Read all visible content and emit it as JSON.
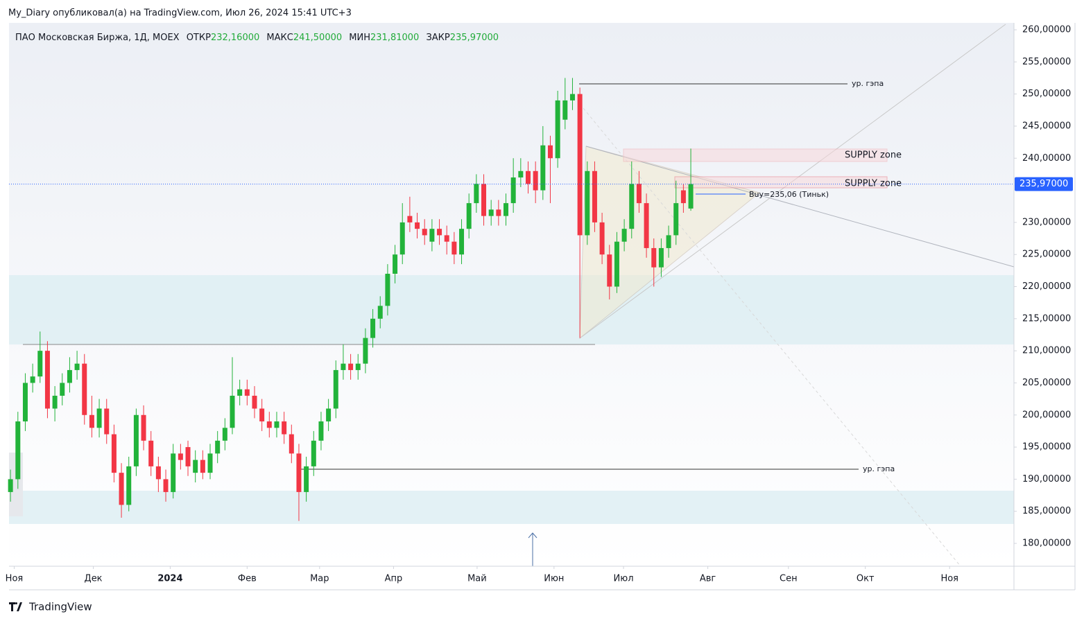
{
  "header": {
    "text": "My_Diary опубликовал(а) на TradingView.com, Июл 26, 2024 15:41 UTC+3"
  },
  "footer": {
    "brand": "TradingView"
  },
  "chart_data": {
    "type": "candlestick",
    "title": "ПАО Московская Биржа, 1Д, MOEX",
    "ohlc_legend": [
      {
        "name": "ОТКР",
        "label": "232,16000"
      },
      {
        "name": "МАКС",
        "label": "241,50000"
      },
      {
        "name": "МИН",
        "label": "231,81000"
      },
      {
        "name": "ЗАКР",
        "label": "235,97000"
      }
    ],
    "up_color": "#22b33a",
    "down_color": "#f23645",
    "open": [
      188,
      190,
      199,
      205,
      206,
      210,
      201,
      203,
      205,
      207,
      208,
      200,
      198,
      201,
      197,
      191,
      186,
      192,
      200,
      196,
      192,
      190,
      188,
      194,
      195,
      191,
      193,
      191,
      194,
      196,
      198,
      203,
      204,
      203,
      201,
      199,
      198,
      199,
      197,
      194,
      188,
      192,
      196,
      199,
      201,
      207,
      208,
      207,
      208,
      212,
      215,
      217,
      222,
      225,
      231,
      230,
      229,
      227,
      229,
      228,
      227,
      225,
      229,
      233,
      236,
      231,
      232,
      231,
      233,
      237,
      238,
      238,
      235,
      242,
      240,
      246,
      249,
      250,
      228,
      238,
      230,
      225,
      220,
      227,
      229,
      236,
      233,
      226,
      223,
      226,
      228,
      235,
      232.16
    ],
    "high": [
      191.5,
      200.5,
      206.5,
      208,
      213,
      211.5,
      204.5,
      206.5,
      209,
      210,
      209.5,
      203,
      202.5,
      202.5,
      198.5,
      192.5,
      193.5,
      201,
      201.5,
      197.5,
      193.5,
      191.5,
      195.5,
      195.5,
      196,
      194.5,
      194.5,
      195.5,
      197.5,
      199.5,
      209,
      205.5,
      205.5,
      204.5,
      202.5,
      200.5,
      200.5,
      200.5,
      198.5,
      195.5,
      193.5,
      197.5,
      200.5,
      202.5,
      208.5,
      211,
      209.5,
      209.5,
      213.5,
      216.5,
      218.5,
      223.5,
      226.5,
      233,
      234,
      231.5,
      230.5,
      230.5,
      230.5,
      229.5,
      228.5,
      230.5,
      234.5,
      237.5,
      237.5,
      233.5,
      233.5,
      234.5,
      240,
      240,
      239.5,
      239.5,
      245,
      243.5,
      250.5,
      252.5,
      252.5,
      251,
      239.5,
      239.5,
      231.5,
      226.5,
      228.5,
      230.5,
      239.5,
      238,
      234.5,
      227.5,
      227.5,
      229.5,
      236.5,
      236,
      241.5
    ],
    "low": [
      186.5,
      188.5,
      197.5,
      203.5,
      205,
      199.5,
      199,
      201.5,
      203.5,
      205.5,
      198.5,
      196.5,
      196.5,
      195.5,
      189.5,
      184,
      185,
      190.5,
      194.5,
      190.5,
      188,
      186.5,
      187,
      191.5,
      190.5,
      189.5,
      190,
      190,
      192.5,
      194.5,
      197,
      201.5,
      201.5,
      199.5,
      197.5,
      196.5,
      196.5,
      195.5,
      192.5,
      183.5,
      186.5,
      190.5,
      194.5,
      197.5,
      199.5,
      205.5,
      205.5,
      205.5,
      206.5,
      210.5,
      213.5,
      215.5,
      220.5,
      223.5,
      228.5,
      227.5,
      226.5,
      225.5,
      226.5,
      225,
      223.5,
      223.5,
      227.5,
      231.5,
      229.5,
      229.5,
      229.5,
      229.5,
      231.5,
      235.5,
      234.5,
      233,
      233.5,
      233,
      238.5,
      244.5,
      247.5,
      212,
      226.5,
      228.5,
      223.5,
      218,
      219,
      225.5,
      227.5,
      231.5,
      224.5,
      220,
      221.5,
      224.5,
      226.5,
      231.5,
      231.81
    ],
    "close": [
      190,
      199,
      205,
      206,
      210,
      201,
      203,
      205,
      207,
      208,
      200,
      198,
      201,
      197,
      191,
      186,
      192,
      200,
      196,
      192,
      190,
      188,
      194,
      193,
      192,
      193,
      191,
      194,
      196,
      198,
      203,
      204,
      203,
      201,
      199,
      198,
      199,
      197,
      194,
      188,
      192,
      196,
      199,
      201,
      207,
      208,
      207,
      208,
      212,
      215,
      217,
      222,
      225,
      230,
      230,
      229,
      228,
      229,
      228,
      227,
      225,
      229,
      233,
      236,
      231,
      232,
      231,
      233,
      237,
      238,
      236,
      235,
      242,
      240,
      249,
      249,
      250,
      228,
      238,
      230,
      225,
      220,
      227,
      229,
      236,
      233,
      226,
      223,
      226,
      228,
      233,
      233,
      235.97
    ],
    "last_price": {
      "value": 235.97,
      "label": "235,97000"
    },
    "ylim": [
      176.44,
      261.08
    ],
    "yticks": [
      {
        "value": 180,
        "label": "180,00000"
      },
      {
        "value": 185,
        "label": "185,00000"
      },
      {
        "value": 190,
        "label": "190,00000"
      },
      {
        "value": 195,
        "label": "195,00000"
      },
      {
        "value": 200,
        "label": "200,00000"
      },
      {
        "value": 205,
        "label": "205,00000"
      },
      {
        "value": 210,
        "label": "210,00000"
      },
      {
        "value": 215,
        "label": "215,00000"
      },
      {
        "value": 220,
        "label": "220,00000"
      },
      {
        "value": 225,
        "label": "225,00000"
      },
      {
        "value": 230,
        "label": "230,00000"
      },
      {
        "value": 240,
        "label": "240,00000"
      },
      {
        "value": 245,
        "label": "245,00000"
      },
      {
        "value": 250,
        "label": "250,00000"
      },
      {
        "value": 255,
        "label": "255,00000"
      },
      {
        "value": 260,
        "label": "260,00000"
      }
    ],
    "xlim": [
      -0.2,
      135.7
    ],
    "xticks": [
      {
        "value": 0.5,
        "label": "Ноя"
      },
      {
        "value": 11.2,
        "label": "Дек"
      },
      {
        "value": 21.6,
        "label": "2024",
        "bold": true
      },
      {
        "value": 32,
        "label": "Фев"
      },
      {
        "value": 41.8,
        "label": "Мар"
      },
      {
        "value": 51.8,
        "label": "Апр"
      },
      {
        "value": 63.1,
        "label": "Май"
      },
      {
        "value": 73.5,
        "label": "Июн"
      },
      {
        "value": 82.9,
        "label": "Июл"
      },
      {
        "value": 94.3,
        "label": "Авг"
      },
      {
        "value": 105.2,
        "label": "Сен"
      },
      {
        "value": 115.6,
        "label": "Окт"
      },
      {
        "value": 127,
        "label": "Ноя"
      }
    ],
    "grid": false,
    "annotations": {
      "gap_upper": "ур. гэпа",
      "gap_lower": "ур. гэпа",
      "supply_upper": "SUPPLY zone",
      "supply_lower": "SUPPLY zone",
      "buy": "Buy=235,06 (Тиньк)"
    }
  }
}
